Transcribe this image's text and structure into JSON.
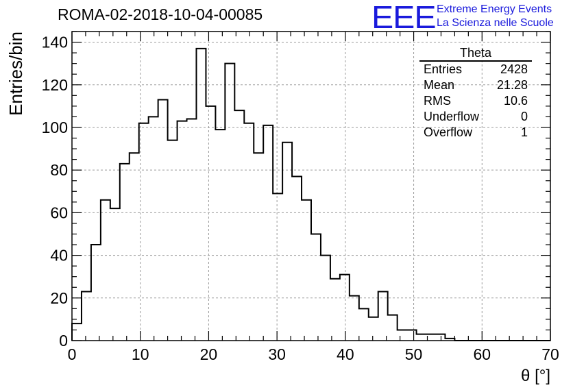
{
  "run_label": "ROMA-02-2018-10-04-00085",
  "logo": {
    "mark": "EEE",
    "line1": "Extreme Energy Events",
    "line2": "La Scienza nelle Scuole",
    "color": "#1a1adc"
  },
  "stats_box": {
    "title": "Theta",
    "rows": [
      {
        "label": "Entries",
        "value": "2428"
      },
      {
        "label": "Mean",
        "value": "21.28"
      },
      {
        "label": "RMS",
        "value": "10.6"
      },
      {
        "label": "Underflow",
        "value": "0"
      },
      {
        "label": "Overflow",
        "value": "1"
      }
    ]
  },
  "chart_data": {
    "type": "bar",
    "style": "step-histogram",
    "title": "ROMA-02-2018-10-04-00085",
    "xlabel": "θ [°]",
    "ylabel": "Entries/bin",
    "xlim": [
      0,
      70
    ],
    "ylim": [
      0,
      145
    ],
    "grid": true,
    "bin_width": 1.4,
    "xticks": [
      0,
      10,
      20,
      30,
      40,
      50,
      60,
      70
    ],
    "yticks": [
      0,
      20,
      40,
      60,
      80,
      100,
      120,
      140
    ],
    "values": [
      8,
      23,
      45,
      66,
      62,
      83,
      88,
      102,
      105,
      113,
      94,
      103,
      104,
      137,
      110,
      99,
      130,
      108,
      102,
      88,
      101,
      69,
      93,
      77,
      66,
      50,
      40,
      29,
      31,
      21,
      15,
      11,
      23,
      12,
      5,
      5,
      3,
      3,
      3,
      1,
      0,
      0,
      0,
      0,
      0,
      0,
      0,
      0,
      0,
      0
    ]
  }
}
